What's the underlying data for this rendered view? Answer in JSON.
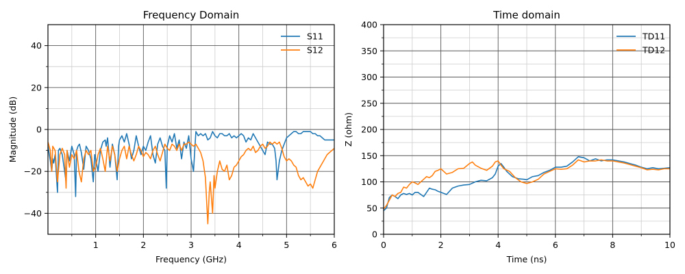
{
  "chart_data": [
    {
      "type": "line",
      "title": "Frequency Domain",
      "xlabel": "Frequency (GHz)",
      "ylabel": "Magnitude (dB)",
      "xlim": [
        0.0,
        6.0
      ],
      "ylim": [
        -50,
        50
      ],
      "xticks": [
        1,
        2,
        3,
        4,
        5,
        6
      ],
      "yticks": [
        -40,
        -20,
        0,
        20,
        40
      ],
      "xminor": [
        0.5,
        1.5,
        2.5,
        3.5,
        4.5,
        5.5
      ],
      "yminor": [
        -30,
        -10,
        10,
        30
      ],
      "grid": true,
      "legend_position": "top-right",
      "series": [
        {
          "name": "S11",
          "color": "#1f77b4",
          "x": [
            0.0,
            0.05,
            0.08,
            0.1,
            0.12,
            0.15,
            0.2,
            0.22,
            0.25,
            0.3,
            0.35,
            0.38,
            0.4,
            0.45,
            0.5,
            0.55,
            0.58,
            0.6,
            0.63,
            0.66,
            0.7,
            0.75,
            0.8,
            0.85,
            0.9,
            0.95,
            0.98,
            1.0,
            1.05,
            1.1,
            1.15,
            1.2,
            1.22,
            1.25,
            1.3,
            1.35,
            1.4,
            1.45,
            1.48,
            1.5,
            1.55,
            1.6,
            1.65,
            1.7,
            1.75,
            1.8,
            1.85,
            1.9,
            1.95,
            2.0,
            2.05,
            2.1,
            2.15,
            2.2,
            2.25,
            2.3,
            2.35,
            2.4,
            2.45,
            2.48,
            2.5,
            2.55,
            2.6,
            2.65,
            2.7,
            2.75,
            2.8,
            2.85,
            2.9,
            2.95,
            3.0,
            3.05,
            3.1,
            3.15,
            3.2,
            3.25,
            3.3,
            3.35,
            3.4,
            3.45,
            3.5,
            3.55,
            3.6,
            3.65,
            3.7,
            3.75,
            3.8,
            3.85,
            3.9,
            3.95,
            4.0,
            4.05,
            4.1,
            4.15,
            4.2,
            4.25,
            4.3,
            4.35,
            4.4,
            4.45,
            4.5,
            4.55,
            4.6,
            4.65,
            4.7,
            4.75,
            4.78,
            4.8,
            4.85,
            4.9,
            4.95,
            5.0,
            5.05,
            5.1,
            5.15,
            5.2,
            5.25,
            5.3,
            5.35,
            5.4,
            5.45,
            5.5,
            5.55,
            5.6,
            5.65,
            5.7,
            5.75,
            5.8,
            5.85,
            5.9,
            5.95,
            6.0
          ],
          "y": [
            -8,
            -15,
            -20,
            -14,
            -16,
            -12,
            -30,
            -10,
            -9,
            -12,
            -20,
            -25,
            -10,
            -15,
            -8,
            -12,
            -32,
            -10,
            -8,
            -7,
            -11,
            -19,
            -8,
            -10,
            -14,
            -25,
            -12,
            -14,
            -20,
            -10,
            -6,
            -5,
            -8,
            -4,
            -18,
            -7,
            -12,
            -24,
            -8,
            -5,
            -3,
            -6,
            -2,
            -7,
            -14,
            -10,
            -3,
            -8,
            -12,
            -8,
            -10,
            -6,
            -3,
            -12,
            -16,
            -7,
            -4,
            -8,
            -10,
            -28,
            -8,
            -3,
            -6,
            -2,
            -9,
            -5,
            -14,
            -6,
            -9,
            -3,
            -14,
            -20,
            -1,
            -3,
            -2,
            -3,
            -2,
            -5,
            -4,
            -1,
            -3,
            -4,
            -2,
            -2,
            -3,
            -3,
            -2,
            -4,
            -3,
            -4,
            -3,
            -2,
            -3,
            -6,
            -4,
            -5,
            -2,
            -4,
            -6,
            -8,
            -10,
            -12,
            -6,
            -7,
            -7,
            -9,
            -15,
            -24,
            -15,
            -10,
            -7,
            -4,
            -3,
            -2,
            -1,
            -1,
            -2,
            -2,
            -1,
            -1,
            -1,
            -1,
            -2,
            -2,
            -3,
            -3,
            -4,
            -5,
            -5,
            -5,
            -5,
            -5
          ]
        },
        {
          "name": "S12",
          "color": "#ff7f0e",
          "x": [
            0.0,
            0.05,
            0.08,
            0.1,
            0.15,
            0.2,
            0.25,
            0.3,
            0.35,
            0.38,
            0.4,
            0.45,
            0.5,
            0.55,
            0.6,
            0.65,
            0.7,
            0.75,
            0.8,
            0.85,
            0.9,
            0.95,
            1.0,
            1.05,
            1.1,
            1.15,
            1.2,
            1.25,
            1.3,
            1.35,
            1.4,
            1.45,
            1.5,
            1.55,
            1.6,
            1.65,
            1.7,
            1.75,
            1.8,
            1.85,
            1.9,
            1.95,
            2.0,
            2.05,
            2.1,
            2.15,
            2.2,
            2.25,
            2.3,
            2.35,
            2.4,
            2.45,
            2.5,
            2.55,
            2.6,
            2.65,
            2.7,
            2.75,
            2.8,
            2.85,
            2.9,
            2.95,
            3.0,
            3.05,
            3.1,
            3.15,
            3.2,
            3.25,
            3.3,
            3.35,
            3.38,
            3.4,
            3.45,
            3.48,
            3.5,
            3.55,
            3.6,
            3.65,
            3.7,
            3.75,
            3.8,
            3.85,
            3.9,
            3.95,
            4.0,
            4.05,
            4.1,
            4.15,
            4.2,
            4.25,
            4.3,
            4.35,
            4.4,
            4.45,
            4.5,
            4.55,
            4.6,
            4.65,
            4.7,
            4.75,
            4.8,
            4.85,
            4.9,
            4.95,
            5.0,
            5.05,
            5.1,
            5.15,
            5.2,
            5.25,
            5.3,
            5.35,
            5.4,
            5.45,
            5.5,
            5.55,
            5.6,
            5.65,
            5.7,
            5.75,
            5.8,
            5.85,
            5.9,
            5.95,
            6.0
          ],
          "y": [
            -6,
            -10,
            -20,
            -8,
            -10,
            -25,
            -12,
            -9,
            -12,
            -28,
            -10,
            -18,
            -12,
            -14,
            -10,
            -20,
            -25,
            -14,
            -10,
            -12,
            -10,
            -20,
            -18,
            -12,
            -9,
            -14,
            -20,
            -8,
            -15,
            -8,
            -12,
            -20,
            -14,
            -10,
            -8,
            -14,
            -8,
            -12,
            -15,
            -12,
            -8,
            -10,
            -13,
            -11,
            -12,
            -14,
            -10,
            -8,
            -12,
            -15,
            -11,
            -7,
            -9,
            -10,
            -7,
            -8,
            -10,
            -7,
            -10,
            -7,
            -7,
            -6,
            -7,
            -8,
            -7,
            -9,
            -11,
            -15,
            -23,
            -45,
            -30,
            -25,
            -40,
            -22,
            -28,
            -20,
            -15,
            -19,
            -20,
            -17,
            -24,
            -22,
            -18,
            -17,
            -15,
            -13,
            -12,
            -10,
            -9,
            -10,
            -8,
            -11,
            -10,
            -8,
            -7,
            -9,
            -8,
            -6,
            -7,
            -6,
            -7,
            -6,
            -9,
            -13,
            -15,
            -14,
            -15,
            -17,
            -18,
            -22,
            -24,
            -23,
            -25,
            -27,
            -26,
            -28,
            -24,
            -20,
            -18,
            -16,
            -14,
            -12,
            -11,
            -10,
            -9
          ]
        }
      ]
    },
    {
      "type": "line",
      "title": "Time domain",
      "xlabel": "Time (ns)",
      "ylabel": "Z (ohm)",
      "xlim": [
        0,
        10
      ],
      "ylim": [
        0,
        400
      ],
      "xticks": [
        0,
        2,
        4,
        6,
        8,
        10
      ],
      "yticks": [
        0,
        50,
        100,
        150,
        200,
        250,
        300,
        350,
        400
      ],
      "xminor": [
        1,
        3,
        5,
        7,
        9
      ],
      "yminor": [
        25,
        75,
        125,
        175,
        225,
        275,
        325,
        375
      ],
      "grid": true,
      "legend_position": "top-right",
      "series": [
        {
          "name": "TD11",
          "color": "#1f77b4",
          "x": [
            0.0,
            0.1,
            0.2,
            0.3,
            0.4,
            0.5,
            0.6,
            0.7,
            0.8,
            0.9,
            1.0,
            1.1,
            1.2,
            1.3,
            1.4,
            1.5,
            1.6,
            1.7,
            1.8,
            1.9,
            2.0,
            2.2,
            2.4,
            2.6,
            2.8,
            3.0,
            3.2,
            3.4,
            3.6,
            3.8,
            3.9,
            4.0,
            4.1,
            4.2,
            4.3,
            4.5,
            4.7,
            4.9,
            5.0,
            5.2,
            5.4,
            5.6,
            5.8,
            6.0,
            6.2,
            6.4,
            6.6,
            6.8,
            7.0,
            7.2,
            7.4,
            7.6,
            7.8,
            8.0,
            8.2,
            8.4,
            8.6,
            8.8,
            9.0,
            9.2,
            9.4,
            9.6,
            9.8,
            10.0
          ],
          "y": [
            45,
            50,
            70,
            75,
            72,
            68,
            75,
            78,
            76,
            78,
            75,
            80,
            80,
            76,
            72,
            80,
            88,
            86,
            85,
            82,
            80,
            76,
            88,
            92,
            94,
            95,
            100,
            103,
            102,
            108,
            115,
            130,
            135,
            128,
            120,
            110,
            106,
            105,
            104,
            110,
            112,
            118,
            122,
            128,
            128,
            130,
            138,
            148,
            146,
            140,
            144,
            140,
            142,
            142,
            140,
            138,
            135,
            132,
            128,
            125,
            127,
            125,
            126,
            127
          ]
        },
        {
          "name": "TD12",
          "color": "#ff7f0e",
          "x": [
            0.0,
            0.1,
            0.2,
            0.3,
            0.4,
            0.5,
            0.6,
            0.7,
            0.8,
            0.9,
            1.0,
            1.1,
            1.2,
            1.3,
            1.4,
            1.5,
            1.6,
            1.7,
            1.8,
            1.9,
            2.0,
            2.2,
            2.4,
            2.6,
            2.8,
            3.0,
            3.1,
            3.2,
            3.4,
            3.6,
            3.8,
            3.9,
            4.0,
            4.1,
            4.2,
            4.4,
            4.6,
            4.8,
            5.0,
            5.2,
            5.4,
            5.6,
            5.8,
            6.0,
            6.2,
            6.4,
            6.6,
            6.8,
            7.0,
            7.2,
            7.4,
            7.6,
            7.8,
            8.0,
            8.2,
            8.4,
            8.6,
            8.8,
            9.0,
            9.2,
            9.4,
            9.6,
            9.8,
            10.0
          ],
          "y": [
            48,
            55,
            65,
            75,
            72,
            78,
            80,
            90,
            88,
            95,
            100,
            98,
            95,
            100,
            105,
            110,
            108,
            112,
            120,
            122,
            125,
            115,
            118,
            125,
            126,
            135,
            138,
            132,
            126,
            122,
            130,
            138,
            140,
            132,
            125,
            120,
            108,
            100,
            97,
            100,
            105,
            115,
            120,
            125,
            124,
            125,
            132,
            142,
            138,
            140,
            140,
            142,
            140,
            140,
            138,
            136,
            133,
            130,
            127,
            123,
            124,
            123,
            125,
            125
          ]
        }
      ]
    }
  ]
}
